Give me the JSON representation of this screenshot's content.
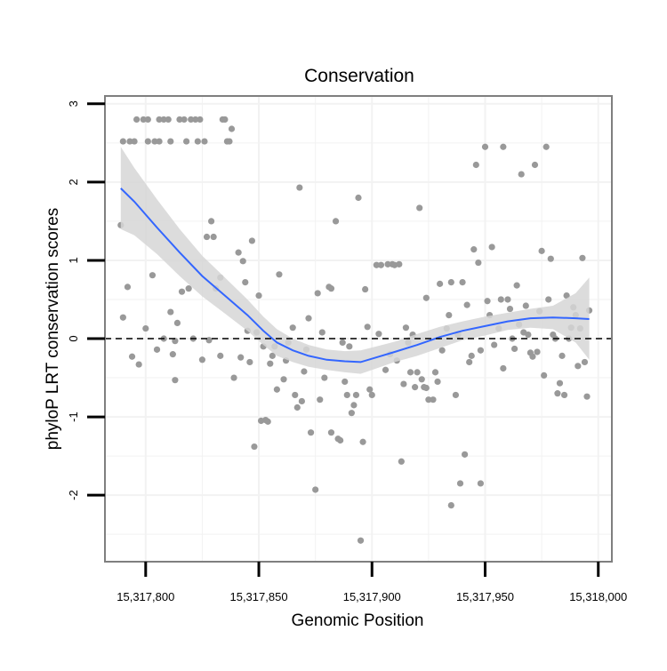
{
  "chart_data": {
    "type": "scatter",
    "title": "Conservation",
    "xlabel": "Genomic Position",
    "ylabel": "phyloP LRT conservation scores",
    "xlim": [
      15317782,
      15318006
    ],
    "ylim": [
      -2.85,
      3.1
    ],
    "x_ticks": [
      15317800,
      15317850,
      15317900,
      15317950,
      15318000
    ],
    "x_tick_labels": [
      "15,317,800",
      "15,317,850",
      "15,317,900",
      "15,317,950",
      "15,318,000"
    ],
    "y_ticks": [
      -2,
      -1,
      0,
      1,
      2,
      3
    ],
    "y_tick_labels": [
      "-2",
      "-1",
      "0",
      "1",
      "2",
      "3"
    ],
    "grid": true,
    "reference_line": {
      "y": 0,
      "style": "dashed"
    },
    "colors": {
      "points": "#999999",
      "smooth_line": "#3366ff",
      "confidence_band": "#d6d6d6",
      "frame": "#7f7f7f",
      "grid": "#f2f2f2",
      "reference": "#000000"
    },
    "series": [
      {
        "name": "phyloP LRT score",
        "kind": "points",
        "points": [
          [
            15317789,
            1.45
          ],
          [
            15317790,
            0.27
          ],
          [
            15317790,
            2.52
          ],
          [
            15317792,
            0.66
          ],
          [
            15317793,
            2.52
          ],
          [
            15317794,
            -0.23
          ],
          [
            15317795,
            2.52
          ],
          [
            15317796,
            2.8
          ],
          [
            15317797,
            -0.33
          ],
          [
            15317799,
            2.8
          ],
          [
            15317800,
            0.13
          ],
          [
            15317801,
            2.8
          ],
          [
            15317801,
            2.52
          ],
          [
            15317803,
            0.81
          ],
          [
            15317804,
            2.52
          ],
          [
            15317805,
            -0.14
          ],
          [
            15317806,
            2.8
          ],
          [
            15317806,
            2.52
          ],
          [
            15317808,
            0.0
          ],
          [
            15317808,
            2.8
          ],
          [
            15317810,
            2.8
          ],
          [
            15317811,
            0.34
          ],
          [
            15317811,
            2.52
          ],
          [
            15317812,
            -0.2
          ],
          [
            15317813,
            -0.53
          ],
          [
            15317813,
            -0.03
          ],
          [
            15317814,
            0.2
          ],
          [
            15317815,
            2.8
          ],
          [
            15317816,
            0.6
          ],
          [
            15317817,
            2.8
          ],
          [
            15317818,
            2.52
          ],
          [
            15317819,
            0.64
          ],
          [
            15317820,
            2.8
          ],
          [
            15317821,
            0.0
          ],
          [
            15317822,
            2.8
          ],
          [
            15317823,
            2.52
          ],
          [
            15317824,
            2.8
          ],
          [
            15317825,
            -0.27
          ],
          [
            15317826,
            2.52
          ],
          [
            15317827,
            1.3
          ],
          [
            15317828,
            -0.02
          ],
          [
            15317829,
            1.5
          ],
          [
            15317830,
            1.3
          ],
          [
            15317831,
            0.64
          ],
          [
            15317833,
            0.78
          ],
          [
            15317833,
            -0.22
          ],
          [
            15317834,
            2.8
          ],
          [
            15317835,
            2.8
          ],
          [
            15317836,
            2.52
          ],
          [
            15317837,
            2.52
          ],
          [
            15317838,
            2.68
          ],
          [
            15317839,
            -0.5
          ],
          [
            15317841,
            1.1
          ],
          [
            15317842,
            -0.24
          ],
          [
            15317843,
            0.99
          ],
          [
            15317844,
            0.72
          ],
          [
            15317845,
            0.1
          ],
          [
            15317846,
            -0.3
          ],
          [
            15317847,
            1.25
          ],
          [
            15317848,
            -1.38
          ],
          [
            15317849,
            0.08
          ],
          [
            15317850,
            0.55
          ],
          [
            15317851,
            -1.05
          ],
          [
            15317852,
            -0.1
          ],
          [
            15317853,
            -1.04
          ],
          [
            15317854,
            -1.06
          ],
          [
            15317855,
            -0.32
          ],
          [
            15317856,
            -0.22
          ],
          [
            15317857,
            -0.1
          ],
          [
            15317858,
            -0.65
          ],
          [
            15317859,
            0.82
          ],
          [
            15317861,
            -0.52
          ],
          [
            15317862,
            -0.28
          ],
          [
            15317863,
            -0.05
          ],
          [
            15317865,
            0.14
          ],
          [
            15317866,
            -0.72
          ],
          [
            15317867,
            -0.88
          ],
          [
            15317868,
            1.93
          ],
          [
            15317869,
            -0.8
          ],
          [
            15317870,
            -0.42
          ],
          [
            15317871,
            -0.14
          ],
          [
            15317872,
            0.26
          ],
          [
            15317873,
            -1.2
          ],
          [
            15317875,
            -1.93
          ],
          [
            15317876,
            0.58
          ],
          [
            15317877,
            -0.78
          ],
          [
            15317878,
            0.08
          ],
          [
            15317879,
            -0.5
          ],
          [
            15317881,
            0.66
          ],
          [
            15317882,
            -1.2
          ],
          [
            15317882,
            0.64
          ],
          [
            15317884,
            1.5
          ],
          [
            15317885,
            -1.28
          ],
          [
            15317886,
            -1.3
          ],
          [
            15317887,
            -0.05
          ],
          [
            15317888,
            -0.55
          ],
          [
            15317889,
            -0.72
          ],
          [
            15317890,
            -0.1
          ],
          [
            15317891,
            -0.95
          ],
          [
            15317892,
            -0.85
          ],
          [
            15317893,
            -0.72
          ],
          [
            15317894,
            1.8
          ],
          [
            15317895,
            -2.58
          ],
          [
            15317896,
            -1.32
          ],
          [
            15317897,
            0.63
          ],
          [
            15317898,
            0.15
          ],
          [
            15317899,
            -0.65
          ],
          [
            15317900,
            -0.72
          ],
          [
            15317902,
            0.94
          ],
          [
            15317903,
            0.06
          ],
          [
            15317904,
            0.94
          ],
          [
            15317906,
            -0.4
          ],
          [
            15317907,
            0.95
          ],
          [
            15317908,
            -0.2
          ],
          [
            15317909,
            0.95
          ],
          [
            15317910,
            0.94
          ],
          [
            15317911,
            -0.28
          ],
          [
            15317912,
            0.95
          ],
          [
            15317913,
            -1.57
          ],
          [
            15317914,
            -0.58
          ],
          [
            15317915,
            0.14
          ],
          [
            15317916,
            -0.05
          ],
          [
            15317917,
            -0.43
          ],
          [
            15317918,
            0.05
          ],
          [
            15317919,
            -0.62
          ],
          [
            15317920,
            -0.43
          ],
          [
            15317921,
            1.67
          ],
          [
            15317922,
            -0.52
          ],
          [
            15317923,
            -0.62
          ],
          [
            15317924,
            0.52
          ],
          [
            15317924,
            -0.63
          ],
          [
            15317925,
            -0.78
          ],
          [
            15317927,
            -0.78
          ],
          [
            15317928,
            -0.43
          ],
          [
            15317929,
            -0.55
          ],
          [
            15317930,
            0.7
          ],
          [
            15317931,
            -0.15
          ],
          [
            15317933,
            0.13
          ],
          [
            15317934,
            0.3
          ],
          [
            15317935,
            -2.13
          ],
          [
            15317935,
            0.72
          ],
          [
            15317937,
            -0.72
          ],
          [
            15317938,
            0.06
          ],
          [
            15317938,
            0.05
          ],
          [
            15317939,
            -1.85
          ],
          [
            15317940,
            0.72
          ],
          [
            15317941,
            -1.48
          ],
          [
            15317942,
            0.43
          ],
          [
            15317943,
            -0.3
          ],
          [
            15317944,
            -0.22
          ],
          [
            15317945,
            1.14
          ],
          [
            15317946,
            2.22
          ],
          [
            15317947,
            0.97
          ],
          [
            15317948,
            -0.15
          ],
          [
            15317948,
            -1.85
          ],
          [
            15317950,
            2.45
          ],
          [
            15317951,
            0.48
          ],
          [
            15317952,
            0.3
          ],
          [
            15317953,
            1.17
          ],
          [
            15317954,
            -0.08
          ],
          [
            15317956,
            0.13
          ],
          [
            15317957,
            0.5
          ],
          [
            15317958,
            2.45
          ],
          [
            15317958,
            -0.38
          ],
          [
            15317960,
            0.5
          ],
          [
            15317961,
            0.38
          ],
          [
            15317962,
            0.0
          ],
          [
            15317963,
            -0.13
          ],
          [
            15317964,
            0.68
          ],
          [
            15317965,
            0.18
          ],
          [
            15317966,
            2.1
          ],
          [
            15317967,
            0.08
          ],
          [
            15317968,
            0.42
          ],
          [
            15317969,
            0.05
          ],
          [
            15317970,
            -0.18
          ],
          [
            15317971,
            -0.23
          ],
          [
            15317972,
            2.22
          ],
          [
            15317973,
            -0.17
          ],
          [
            15317974,
            0.35
          ],
          [
            15317975,
            1.12
          ],
          [
            15317976,
            -0.47
          ],
          [
            15317977,
            2.45
          ],
          [
            15317978,
            0.5
          ],
          [
            15317979,
            1.02
          ],
          [
            15317980,
            0.05
          ],
          [
            15317981,
            0.0
          ],
          [
            15317982,
            -0.7
          ],
          [
            15317983,
            -0.57
          ],
          [
            15317984,
            -0.22
          ],
          [
            15317985,
            -0.72
          ],
          [
            15317986,
            0.55
          ],
          [
            15317987,
            0.0
          ],
          [
            15317988,
            0.14
          ],
          [
            15317989,
            0.4
          ],
          [
            15317990,
            0.3
          ],
          [
            15317991,
            -0.35
          ],
          [
            15317992,
            0.13
          ],
          [
            15317993,
            1.03
          ],
          [
            15317994,
            -0.3
          ],
          [
            15317995,
            -0.74
          ],
          [
            15317996,
            0.36
          ]
        ]
      },
      {
        "name": "loess smooth",
        "kind": "line",
        "x": [
          15317789,
          15317795,
          15317805,
          15317815,
          15317825,
          15317835,
          15317845,
          15317852,
          15317858,
          15317865,
          15317872,
          15317880,
          15317888,
          15317895,
          15317902,
          15317910,
          15317920,
          15317930,
          15317940,
          15317950,
          15317960,
          15317970,
          15317980,
          15317990,
          15317996
        ],
        "y": [
          1.92,
          1.75,
          1.42,
          1.1,
          0.8,
          0.55,
          0.3,
          0.1,
          -0.05,
          -0.15,
          -0.22,
          -0.27,
          -0.29,
          -0.3,
          -0.24,
          -0.17,
          -0.08,
          0.02,
          0.1,
          0.16,
          0.22,
          0.26,
          0.27,
          0.26,
          0.25
        ],
        "ci_upper": [
          2.45,
          2.18,
          1.78,
          1.4,
          1.06,
          0.78,
          0.5,
          0.28,
          0.12,
          0.0,
          -0.08,
          -0.14,
          -0.16,
          -0.15,
          -0.1,
          -0.04,
          0.06,
          0.15,
          0.22,
          0.28,
          0.33,
          0.38,
          0.42,
          0.58,
          0.78
        ],
        "ci_lower": [
          1.4,
          1.32,
          1.08,
          0.8,
          0.54,
          0.32,
          0.1,
          -0.08,
          -0.22,
          -0.3,
          -0.36,
          -0.4,
          -0.43,
          -0.45,
          -0.38,
          -0.3,
          -0.22,
          -0.12,
          -0.02,
          0.04,
          0.11,
          0.14,
          0.12,
          -0.05,
          -0.27
        ]
      }
    ]
  }
}
